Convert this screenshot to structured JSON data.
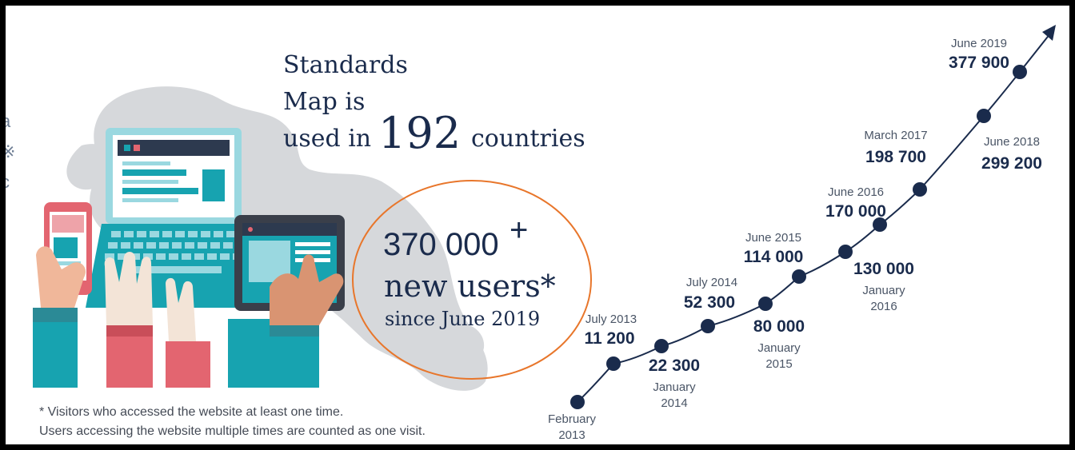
{
  "headline": {
    "line1": "Standards",
    "line2": "Map is",
    "line3_prefix": "used in",
    "count": "192",
    "line3_suffix": "countries"
  },
  "users_callout": {
    "number": "370 000",
    "plus": "+",
    "line2": "new users*",
    "line3": "since June 2019"
  },
  "edge_fragments": [
    "a",
    "※",
    "c"
  ],
  "footnote": {
    "line1": "* Visitors who accessed the website at least one time.",
    "line2": "Users accessing the website multiple times are counted as one visit."
  },
  "colors": {
    "navy": "#1a2b4c",
    "teal": "#17a3b0",
    "pink": "#e36570",
    "map_gray": "#d6d8db",
    "circle_orange": "#e8762b"
  },
  "chart_data": {
    "type": "line",
    "title": "",
    "xlabel": "",
    "ylabel": "",
    "points": [
      {
        "date": "February 2013",
        "date_lines": [
          "February",
          "2013"
        ],
        "value": null,
        "value_label": ""
      },
      {
        "date": "July 2013",
        "date_lines": [
          "July 2013"
        ],
        "value": 11200,
        "value_label": "11 200"
      },
      {
        "date": "January 2014",
        "date_lines": [
          "January",
          "2014"
        ],
        "value": 22300,
        "value_label": "22 300"
      },
      {
        "date": "July 2014",
        "date_lines": [
          "July 2014"
        ],
        "value": 52300,
        "value_label": "52 300"
      },
      {
        "date": "January 2015",
        "date_lines": [
          "January",
          "2015"
        ],
        "value": 80000,
        "value_label": "80 000"
      },
      {
        "date": "June 2015",
        "date_lines": [
          "June 2015"
        ],
        "value": 114000,
        "value_label": "114 000"
      },
      {
        "date": "January 2016",
        "date_lines": [
          "January",
          "2016"
        ],
        "value": 130000,
        "value_label": "130 000"
      },
      {
        "date": "June 2016",
        "date_lines": [
          "June 2016"
        ],
        "value": 170000,
        "value_label": "170 000"
      },
      {
        "date": "March 2017",
        "date_lines": [
          "March 2017"
        ],
        "value": 198700,
        "value_label": "198 700"
      },
      {
        "date": "June 2018",
        "date_lines": [
          "June 2018"
        ],
        "value": 299200,
        "value_label": "299 200"
      },
      {
        "date": "June 2019",
        "date_lines": [
          "June 2019"
        ],
        "value": 377900,
        "value_label": "377 900"
      }
    ],
    "arrow_at_end": true,
    "grid": false,
    "legend": "none"
  }
}
